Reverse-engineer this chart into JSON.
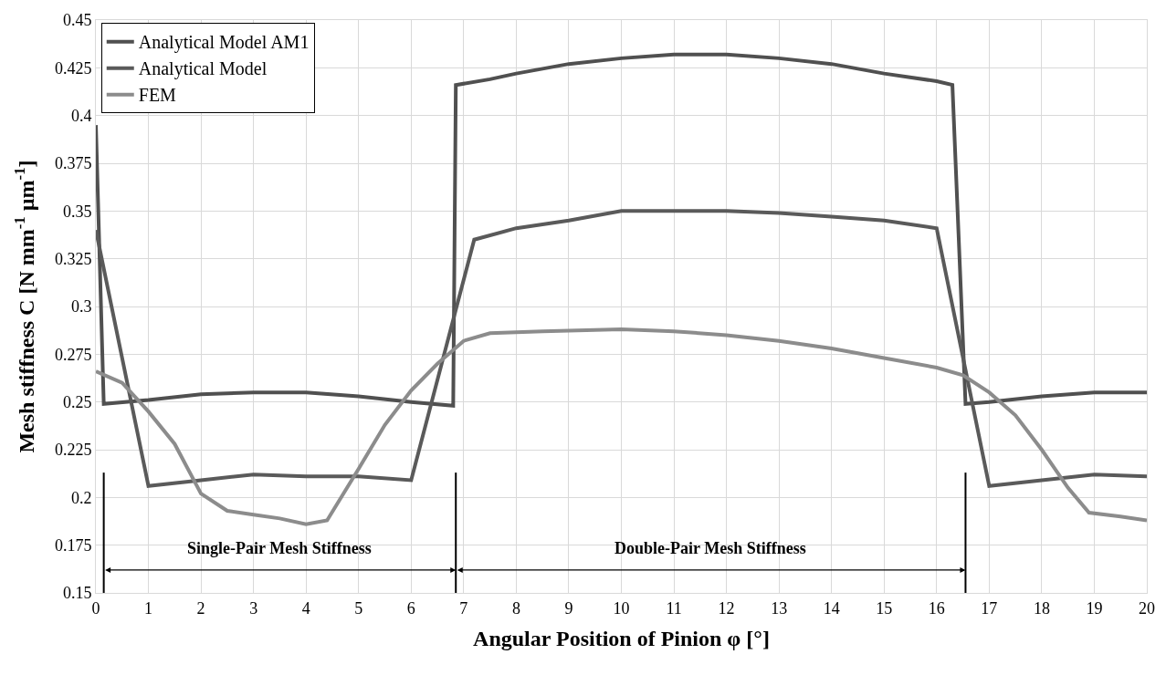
{
  "chart_data": {
    "type": "line",
    "xlabel": "Angular Position of Pinion φ [°]",
    "ylabel": "Mesh stiffness C [N mm$^{-1}$ µm$^{-1}$]",
    "series": [
      {
        "name": "Analytical Model AM1",
        "color": "#505050",
        "x": [
          0,
          0.15,
          1,
          2,
          3,
          4,
          5,
          6,
          6.8,
          6.85,
          7.5,
          8,
          9,
          10,
          11,
          12,
          13,
          14,
          15,
          16,
          16.3,
          16.55,
          17,
          18,
          19,
          20
        ],
        "values": [
          0.395,
          0.249,
          0.251,
          0.254,
          0.255,
          0.255,
          0.253,
          0.25,
          0.248,
          0.416,
          0.419,
          0.422,
          0.427,
          0.43,
          0.432,
          0.432,
          0.43,
          0.427,
          0.422,
          0.418,
          0.416,
          0.249,
          0.25,
          0.253,
          0.255,
          0.255
        ]
      },
      {
        "name": "Analytical Model",
        "color": "#5a5a5a",
        "x": [
          0,
          1,
          2,
          3,
          4,
          5,
          6,
          7.2,
          8,
          9,
          10,
          11,
          12,
          13,
          14,
          15,
          16,
          17,
          18,
          19,
          20
        ],
        "values": [
          0.34,
          0.206,
          0.209,
          0.212,
          0.211,
          0.211,
          0.209,
          0.335,
          0.341,
          0.345,
          0.35,
          0.35,
          0.35,
          0.349,
          0.347,
          0.345,
          0.341,
          0.206,
          0.209,
          0.212,
          0.211
        ]
      },
      {
        "name": "FEM",
        "color": "#8c8c8c",
        "x": [
          0,
          0.5,
          1,
          1.5,
          2,
          2.5,
          3,
          3.5,
          4,
          4.4,
          5,
          5.5,
          6,
          6.5,
          7,
          7.5,
          8.5,
          10,
          11,
          12,
          13,
          14,
          15,
          16,
          16.5,
          17,
          17.5,
          18,
          18.5,
          18.9,
          19.5,
          20
        ],
        "values": [
          0.266,
          0.26,
          0.245,
          0.228,
          0.202,
          0.193,
          0.191,
          0.189,
          0.186,
          0.188,
          0.215,
          0.238,
          0.256,
          0.27,
          0.282,
          0.286,
          0.287,
          0.288,
          0.287,
          0.285,
          0.282,
          0.278,
          0.273,
          0.268,
          0.264,
          0.255,
          0.243,
          0.225,
          0.205,
          0.192,
          0.19,
          0.188
        ]
      }
    ],
    "xlim": [
      0,
      20
    ],
    "xticks": [
      0,
      1,
      2,
      3,
      4,
      5,
      6,
      7,
      8,
      9,
      10,
      11,
      12,
      13,
      14,
      15,
      16,
      17,
      18,
      19,
      20
    ],
    "ylim": [
      0.15,
      0.45
    ],
    "yticks": [
      0.15,
      0.175,
      0.2,
      0.225,
      0.25,
      0.275,
      0.3,
      0.325,
      0.35,
      0.375,
      0.4,
      0.425,
      0.45
    ],
    "ref_lines": [
      {
        "axis": "x",
        "value": 0.15,
        "color": "#000000"
      },
      {
        "axis": "x",
        "value": 6.85,
        "color": "#000000"
      },
      {
        "axis": "x",
        "value": 16.55,
        "color": "#000000"
      }
    ],
    "annotations": [
      "Single-Pair Mesh Stiffness",
      "Double-Pair Mesh Stiffness"
    ],
    "grid": true,
    "legend": "top left",
    "line_style": "solid",
    "marker": "none"
  }
}
